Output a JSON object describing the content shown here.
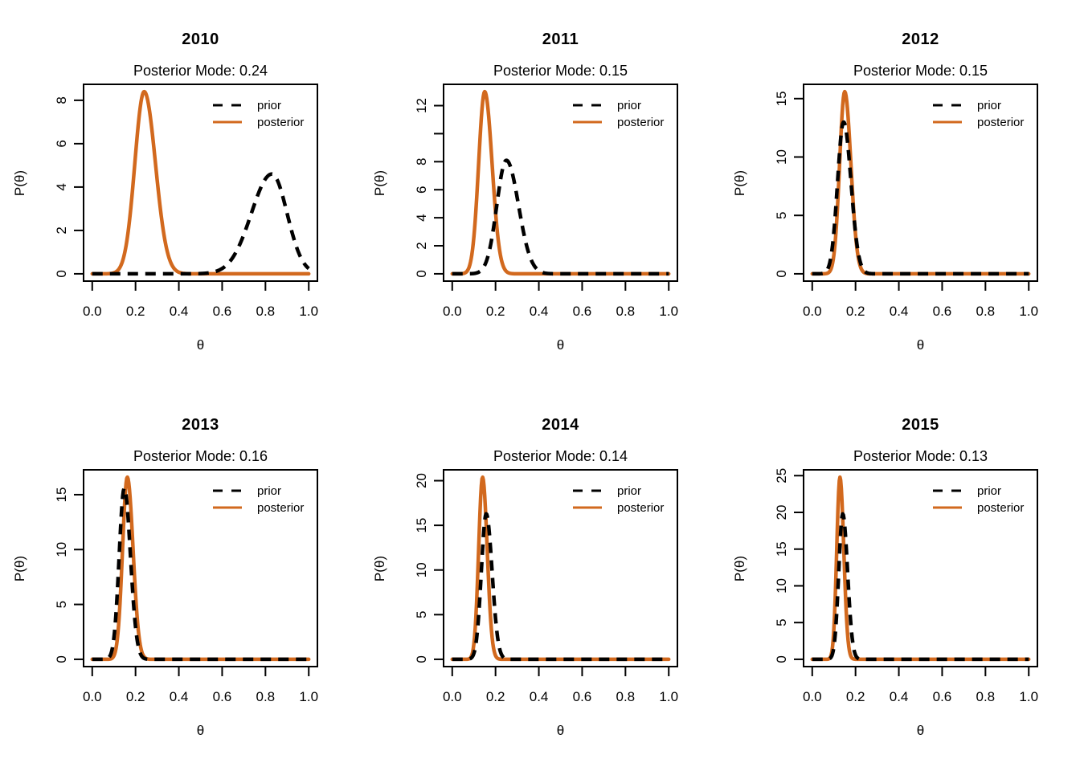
{
  "chart_data": {
    "type": "line",
    "description": "2x3 grid of prior vs posterior density curves over theta, R base-graphics style",
    "x_range": [
      0,
      1
    ],
    "x_padding_fraction": 0.04,
    "x_ticks": [
      "0.0",
      "0.2",
      "0.4",
      "0.6",
      "0.8",
      "1.0"
    ],
    "colors": {
      "prior": "#000000",
      "posterior": "#D2691E",
      "background": "#ffffff",
      "box": "#000000"
    },
    "legend": {
      "position": "top-right",
      "entries": [
        {
          "label": "prior",
          "color": "#000000",
          "dashed": true
        },
        {
          "label": "posterior",
          "color": "#D2691E",
          "dashed": false
        }
      ]
    },
    "panels": [
      {
        "title": "2010",
        "subtitle": "Posterior Mode: 0.24",
        "posterior_mode": 0.24,
        "xlabel": "θ",
        "ylabel": "P(θ)",
        "ylim": [
          0,
          8.4
        ],
        "y_ticks": [
          {
            "v": 0,
            "label": "0"
          },
          {
            "v": 2,
            "label": "2"
          },
          {
            "v": 4,
            "label": "4"
          },
          {
            "v": 6,
            "label": "6"
          },
          {
            "v": 8,
            "label": "8"
          }
        ],
        "prior": {
          "mode": 0.83,
          "peak": 4.6,
          "sd_left": 0.095,
          "sd_right": 0.07
        },
        "posterior": {
          "mode": 0.24,
          "peak": 8.4,
          "sd_left": 0.0433,
          "sd_right": 0.052
        }
      },
      {
        "title": "2011",
        "subtitle": "Posterior Mode: 0.15",
        "posterior_mode": 0.15,
        "xlabel": "θ",
        "ylabel": "P(θ)",
        "ylim": [
          0,
          13.0
        ],
        "y_ticks": [
          {
            "v": 0,
            "label": "0"
          },
          {
            "v": 2,
            "label": "2"
          },
          {
            "v": 4,
            "label": "4"
          },
          {
            "v": 6,
            "label": "6"
          },
          {
            "v": 8,
            "label": "8"
          },
          {
            "v": 10,
            "label": ""
          },
          {
            "v": 12,
            "label": "12"
          }
        ],
        "prior": {
          "mode": 0.25,
          "peak": 8.1,
          "sd_left": 0.044,
          "sd_right": 0.056
        },
        "posterior": {
          "mode": 0.15,
          "peak": 13.0,
          "sd_left": 0.028,
          "sd_right": 0.034
        }
      },
      {
        "title": "2012",
        "subtitle": "Posterior Mode: 0.15",
        "posterior_mode": 0.15,
        "xlabel": "θ",
        "ylabel": "P(θ)",
        "ylim": [
          0,
          15.6
        ],
        "y_ticks": [
          {
            "v": 0,
            "label": "0"
          },
          {
            "v": 5,
            "label": "5"
          },
          {
            "v": 10,
            "label": "10"
          },
          {
            "v": 15,
            "label": "15"
          }
        ],
        "prior": {
          "mode": 0.145,
          "peak": 13.0,
          "sd_left": 0.028,
          "sd_right": 0.034
        },
        "posterior": {
          "mode": 0.15,
          "peak": 15.6,
          "sd_left": 0.0235,
          "sd_right": 0.0285
        }
      },
      {
        "title": "2013",
        "subtitle": "Posterior Mode: 0.16",
        "posterior_mode": 0.16,
        "xlabel": "θ",
        "ylabel": "P(θ)",
        "ylim": [
          0,
          16.6
        ],
        "y_ticks": [
          {
            "v": 0,
            "label": "0"
          },
          {
            "v": 5,
            "label": "5"
          },
          {
            "v": 10,
            "label": "10"
          },
          {
            "v": 15,
            "label": "15"
          }
        ],
        "prior": {
          "mode": 0.148,
          "peak": 15.6,
          "sd_left": 0.0235,
          "sd_right": 0.0285
        },
        "posterior": {
          "mode": 0.162,
          "peak": 16.6,
          "sd_left": 0.022,
          "sd_right": 0.0265
        }
      },
      {
        "title": "2014",
        "subtitle": "Posterior Mode: 0.14",
        "posterior_mode": 0.14,
        "xlabel": "θ",
        "ylabel": "P(θ)",
        "ylim": [
          0,
          20.4
        ],
        "y_ticks": [
          {
            "v": 0,
            "label": "0"
          },
          {
            "v": 5,
            "label": "5"
          },
          {
            "v": 10,
            "label": "10"
          },
          {
            "v": 15,
            "label": "15"
          },
          {
            "v": 20,
            "label": "20"
          }
        ],
        "prior": {
          "mode": 0.157,
          "peak": 16.3,
          "sd_left": 0.0225,
          "sd_right": 0.027
        },
        "posterior": {
          "mode": 0.14,
          "peak": 20.4,
          "sd_left": 0.018,
          "sd_right": 0.0215
        }
      },
      {
        "title": "2015",
        "subtitle": "Posterior Mode: 0.13",
        "posterior_mode": 0.13,
        "xlabel": "θ",
        "ylabel": "P(θ)",
        "ylim": [
          0,
          24.8
        ],
        "y_ticks": [
          {
            "v": 0,
            "label": "0"
          },
          {
            "v": 5,
            "label": "5"
          },
          {
            "v": 10,
            "label": "10"
          },
          {
            "v": 15,
            "label": "15"
          },
          {
            "v": 20,
            "label": "20"
          },
          {
            "v": 25,
            "label": "25"
          }
        ],
        "prior": {
          "mode": 0.141,
          "peak": 19.8,
          "sd_left": 0.0185,
          "sd_right": 0.0222
        },
        "posterior": {
          "mode": 0.128,
          "peak": 24.8,
          "sd_left": 0.0148,
          "sd_right": 0.0177
        }
      }
    ]
  }
}
